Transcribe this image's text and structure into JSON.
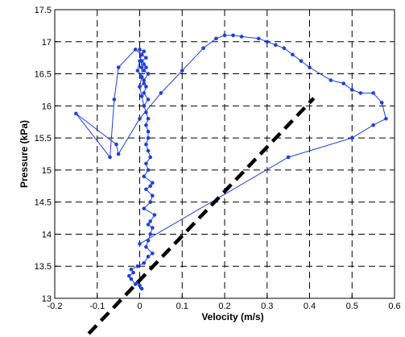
{
  "chart_data": {
    "type": "line",
    "title": "",
    "xlabel": "Velocity (m/s)",
    "ylabel": "Pressure (kPa)",
    "xlim": [
      -0.2,
      0.6
    ],
    "ylim": [
      13,
      17.5
    ],
    "xticks": [
      -0.2,
      -0.1,
      0,
      0.1,
      0.2,
      0.3,
      0.4,
      0.5,
      0.6
    ],
    "yticks": [
      13,
      13.5,
      14,
      14.5,
      15,
      15.5,
      16,
      16.5,
      17,
      17.5
    ],
    "xtick_labels": [
      "-0.2",
      "-0.1",
      "0",
      "0.1",
      "0.2",
      "0.3",
      "0.4",
      "0.5",
      "0.6"
    ],
    "ytick_labels": [
      "13",
      "13.5",
      "14",
      "14.5",
      "15",
      "15.5",
      "16",
      "16.5",
      "17",
      "17.5"
    ],
    "grid": true,
    "series": [
      {
        "style": "blue line with dot markers",
        "color": "#1f3fd6",
        "x": [
          0.005,
          0.0,
          -0.005,
          -0.01,
          -0.02,
          -0.025,
          -0.015,
          -0.02,
          -0.005,
          0.01,
          0.02,
          0.03,
          0.015,
          0.02,
          0.025,
          0.03,
          0.02,
          0.025,
          0.035,
          0.01,
          0.025,
          0.03,
          0.015,
          0.025,
          0.03,
          0.01,
          0.02,
          0.015,
          0.025,
          0.02,
          0.015,
          0.02,
          0.02,
          0.015,
          0.02,
          0.015,
          0.01,
          0.02,
          0.01,
          0.015,
          0.01,
          0.02,
          0.01,
          0.015,
          0.01,
          0.005,
          0.015,
          0.005,
          0.01,
          0.0,
          0.005,
          0.005,
          0.01,
          0.0,
          0.005,
          0.01,
          0.0,
          0.005,
          -0.005,
          0.0,
          0.005,
          -0.01,
          -0.05,
          -0.06,
          -0.07,
          -0.15,
          -0.055,
          -0.05,
          0.0,
          0.05,
          0.1,
          0.15,
          0.18,
          0.2,
          0.22,
          0.24,
          0.28,
          0.3,
          0.32,
          0.34,
          0.36,
          0.38,
          0.4,
          0.45,
          0.48,
          0.5,
          0.52,
          0.55,
          0.57,
          0.58,
          0.55,
          0.5,
          0.35,
          0.0
        ],
        "y": [
          13.15,
          13.2,
          13.25,
          13.22,
          13.3,
          13.35,
          13.4,
          13.45,
          13.5,
          13.55,
          13.65,
          13.7,
          13.8,
          13.9,
          14.0,
          14.1,
          14.15,
          14.2,
          14.3,
          14.4,
          14.5,
          14.6,
          14.7,
          14.75,
          14.8,
          14.9,
          15.0,
          15.1,
          15.2,
          15.3,
          15.4,
          15.5,
          15.6,
          15.7,
          15.8,
          15.9,
          16.0,
          16.1,
          16.2,
          16.3,
          16.4,
          16.5,
          16.55,
          16.6,
          16.65,
          16.7,
          16.75,
          16.8,
          16.85,
          16.88,
          16.6,
          16.45,
          16.35,
          16.3,
          16.15,
          16.0,
          16.3,
          16.45,
          16.55,
          16.7,
          16.8,
          16.88,
          16.6,
          16.1,
          15.2,
          15.88,
          15.4,
          15.25,
          15.8,
          16.2,
          16.55,
          16.9,
          17.05,
          17.1,
          17.1,
          17.08,
          17.05,
          17.0,
          16.95,
          16.9,
          16.8,
          16.7,
          16.6,
          16.4,
          16.35,
          16.25,
          16.2,
          16.2,
          16.05,
          15.8,
          15.7,
          15.5,
          15.2,
          13.85
        ]
      },
      {
        "style": "thick black dashed line",
        "color": "#000000",
        "x": [
          -0.12,
          0.41
        ],
        "y": [
          12.45,
          16.12
        ]
      }
    ]
  }
}
